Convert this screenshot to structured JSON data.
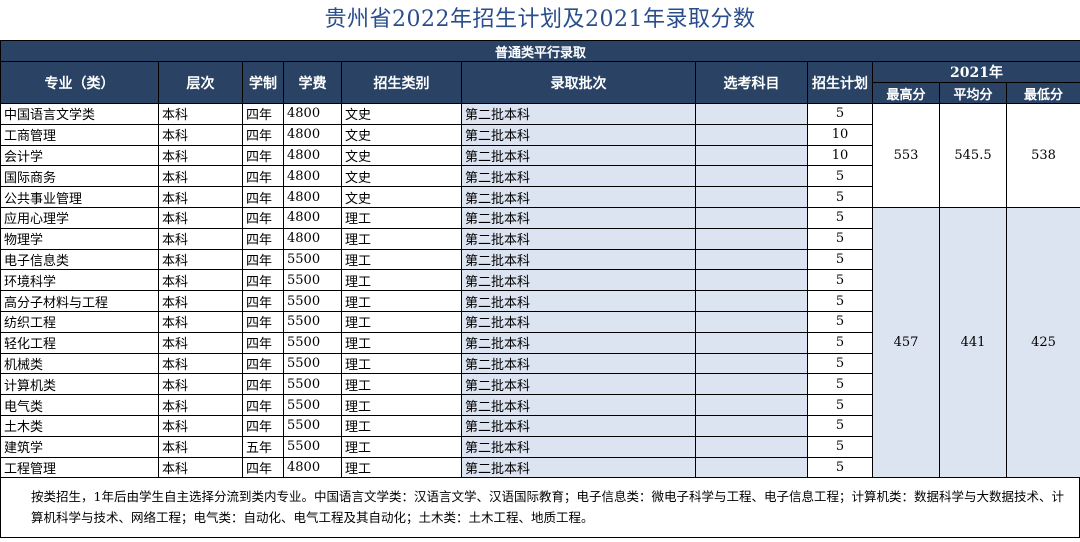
{
  "title": "贵州省2022年招生计划及2021年录取分数",
  "section_title": "普通类平行录取",
  "headers": {
    "major": "专业（类）",
    "level": "层次",
    "duration": "学制",
    "tuition": "学费",
    "category": "招生类别",
    "batch": "录取批次",
    "subjects": "选考科目",
    "quota": "招生计划",
    "year": "2021年",
    "max": "最高分",
    "avg": "平均分",
    "min": "最低分"
  },
  "rows": [
    {
      "major": "中国语言文学类",
      "level": "本科",
      "duration": "四年",
      "tuition": "4800",
      "category": "文史",
      "batch": "第二批本科",
      "subjects": "",
      "quota": "5"
    },
    {
      "major": "工商管理",
      "level": "本科",
      "duration": "四年",
      "tuition": "4800",
      "category": "文史",
      "batch": "第二批本科",
      "subjects": "",
      "quota": "10"
    },
    {
      "major": "会计学",
      "level": "本科",
      "duration": "四年",
      "tuition": "4800",
      "category": "文史",
      "batch": "第二批本科",
      "subjects": "",
      "quota": "10"
    },
    {
      "major": "国际商务",
      "level": "本科",
      "duration": "四年",
      "tuition": "4800",
      "category": "文史",
      "batch": "第二批本科",
      "subjects": "",
      "quota": "5"
    },
    {
      "major": "公共事业管理",
      "level": "本科",
      "duration": "四年",
      "tuition": "4800",
      "category": "文史",
      "batch": "第二批本科",
      "subjects": "",
      "quota": "5"
    },
    {
      "major": "应用心理学",
      "level": "本科",
      "duration": "四年",
      "tuition": "4800",
      "category": "理工",
      "batch": "第二批本科",
      "subjects": "",
      "quota": "5"
    },
    {
      "major": "物理学",
      "level": "本科",
      "duration": "四年",
      "tuition": "4800",
      "category": "理工",
      "batch": "第二批本科",
      "subjects": "",
      "quota": "5"
    },
    {
      "major": "电子信息类",
      "level": "本科",
      "duration": "四年",
      "tuition": "5500",
      "category": "理工",
      "batch": "第二批本科",
      "subjects": "",
      "quota": "5"
    },
    {
      "major": "环境科学",
      "level": "本科",
      "duration": "四年",
      "tuition": "5500",
      "category": "理工",
      "batch": "第二批本科",
      "subjects": "",
      "quota": "5"
    },
    {
      "major": "高分子材料与工程",
      "level": "本科",
      "duration": "四年",
      "tuition": "5500",
      "category": "理工",
      "batch": "第二批本科",
      "subjects": "",
      "quota": "5"
    },
    {
      "major": "纺织工程",
      "level": "本科",
      "duration": "四年",
      "tuition": "5500",
      "category": "理工",
      "batch": "第二批本科",
      "subjects": "",
      "quota": "5"
    },
    {
      "major": "轻化工程",
      "level": "本科",
      "duration": "四年",
      "tuition": "5500",
      "category": "理工",
      "batch": "第二批本科",
      "subjects": "",
      "quota": "5"
    },
    {
      "major": "机械类",
      "level": "本科",
      "duration": "四年",
      "tuition": "5500",
      "category": "理工",
      "batch": "第二批本科",
      "subjects": "",
      "quota": "5"
    },
    {
      "major": "计算机类",
      "level": "本科",
      "duration": "四年",
      "tuition": "5500",
      "category": "理工",
      "batch": "第二批本科",
      "subjects": "",
      "quota": "5"
    },
    {
      "major": "电气类",
      "level": "本科",
      "duration": "四年",
      "tuition": "5500",
      "category": "理工",
      "batch": "第二批本科",
      "subjects": "",
      "quota": "5"
    },
    {
      "major": "土木类",
      "level": "本科",
      "duration": "四年",
      "tuition": "5500",
      "category": "理工",
      "batch": "第二批本科",
      "subjects": "",
      "quota": "5"
    },
    {
      "major": "建筑学",
      "level": "本科",
      "duration": "五年",
      "tuition": "5500",
      "category": "理工",
      "batch": "第二批本科",
      "subjects": "",
      "quota": "5"
    },
    {
      "major": "工程管理",
      "level": "本科",
      "duration": "四年",
      "tuition": "4800",
      "category": "理工",
      "batch": "第二批本科",
      "subjects": "",
      "quota": "5"
    }
  ],
  "score_groups": [
    {
      "rows": 5,
      "max": "553",
      "avg": "545.5",
      "min": "538"
    },
    {
      "rows": 13,
      "max": "457",
      "avg": "441",
      "min": "425"
    }
  ],
  "footnote": "按类招生，1年后由学生自主选择分流到类内专业。中国语言文学类：汉语言文学、汉语国际教育；电子信息类：微电子科学与工程、电子信息工程；计算机类：数据科学与大数据技术、计算机科学与技术、网络工程；电气类：自动化、电气工程及其自动化；土木类：土木工程、地质工程。"
}
